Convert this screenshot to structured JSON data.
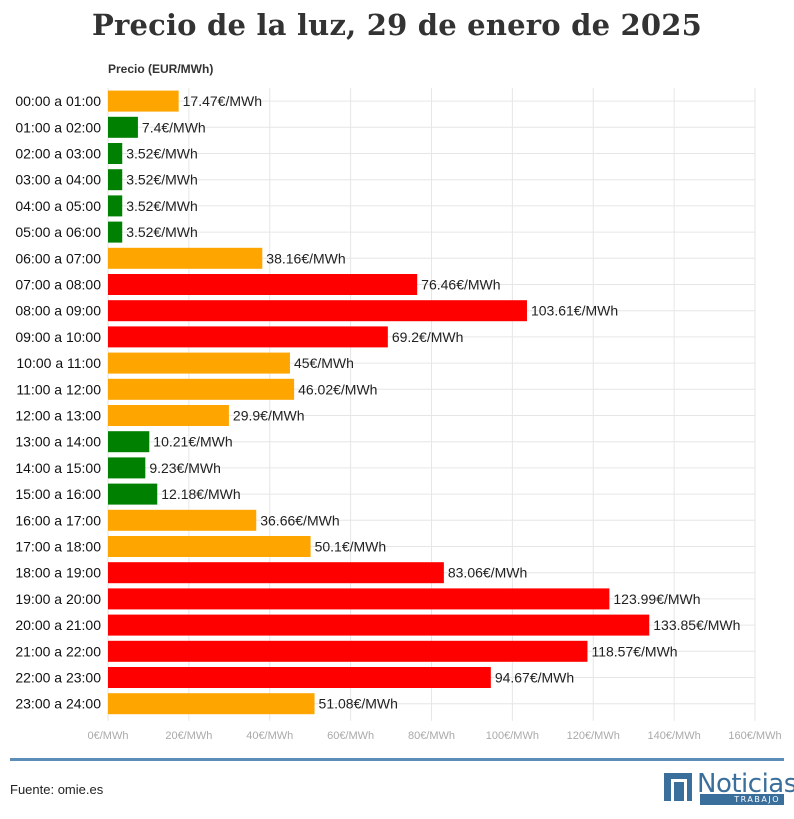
{
  "title": "Precio de la luz, 29 de enero de 2025",
  "source": "Fuente: omie.es",
  "logo": {
    "name": "Noticias",
    "sub": "TRABAJO",
    "color": "#3a6f9c"
  },
  "colors": {
    "low": "#008000",
    "mid": "#ffa500",
    "high": "#ff0000",
    "grid": "#e6e6e6",
    "tick": "#aaaaaa",
    "footer_line": "#5b8db8"
  },
  "chart_data": {
    "type": "bar",
    "orientation": "horizontal",
    "title": "Precio de la luz, 29 de enero de 2025",
    "xlabel": "Precio (EUR/MWh)",
    "ylabel": "",
    "xlim": [
      0,
      160
    ],
    "xticks": [
      0,
      20,
      40,
      60,
      80,
      100,
      120,
      140,
      160
    ],
    "xtick_labels": [
      "0€/MWh",
      "20€/MWh",
      "40€/MWh",
      "60€/MWh",
      "80€/MWh",
      "100€/MWh",
      "120€/MWh",
      "140€/MWh",
      "160€/MWh"
    ],
    "grid": true,
    "categories": [
      "00:00 a 01:00",
      "01:00 a 02:00",
      "02:00 a 03:00",
      "03:00 a 04:00",
      "04:00 a 05:00",
      "05:00 a 06:00",
      "06:00 a 07:00",
      "07:00 a 08:00",
      "08:00 a 09:00",
      "09:00 a 10:00",
      "10:00 a 11:00",
      "11:00 a 12:00",
      "12:00 a 13:00",
      "13:00 a 14:00",
      "14:00 a 15:00",
      "15:00 a 16:00",
      "16:00 a 17:00",
      "17:00 a 18:00",
      "18:00 a 19:00",
      "19:00 a 20:00",
      "20:00 a 21:00",
      "21:00 a 22:00",
      "22:00 a 23:00",
      "23:00 a 24:00"
    ],
    "values": [
      17.47,
      7.4,
      3.52,
      3.52,
      3.52,
      3.52,
      38.16,
      76.46,
      103.61,
      69.2,
      45,
      46.02,
      29.9,
      10.21,
      9.23,
      12.18,
      36.66,
      50.1,
      83.06,
      123.99,
      133.85,
      118.57,
      94.67,
      51.08
    ],
    "labels": [
      "17.47€/MWh",
      "7.4€/MWh",
      "3.52€/MWh",
      "3.52€/MWh",
      "3.52€/MWh",
      "3.52€/MWh",
      "38.16€/MWh",
      "76.46€/MWh",
      "103.61€/MWh",
      "69.2€/MWh",
      "45€/MWh",
      "46.02€/MWh",
      "29.9€/MWh",
      "10.21€/MWh",
      "9.23€/MWh",
      "12.18€/MWh",
      "36.66€/MWh",
      "50.1€/MWh",
      "83.06€/MWh",
      "123.99€/MWh",
      "133.85€/MWh",
      "118.57€/MWh",
      "94.67€/MWh",
      "51.08€/MWh"
    ],
    "levels": [
      "mid",
      "low",
      "low",
      "low",
      "low",
      "low",
      "mid",
      "high",
      "high",
      "high",
      "mid",
      "mid",
      "mid",
      "low",
      "low",
      "low",
      "mid",
      "mid",
      "high",
      "high",
      "high",
      "high",
      "high",
      "mid"
    ]
  }
}
